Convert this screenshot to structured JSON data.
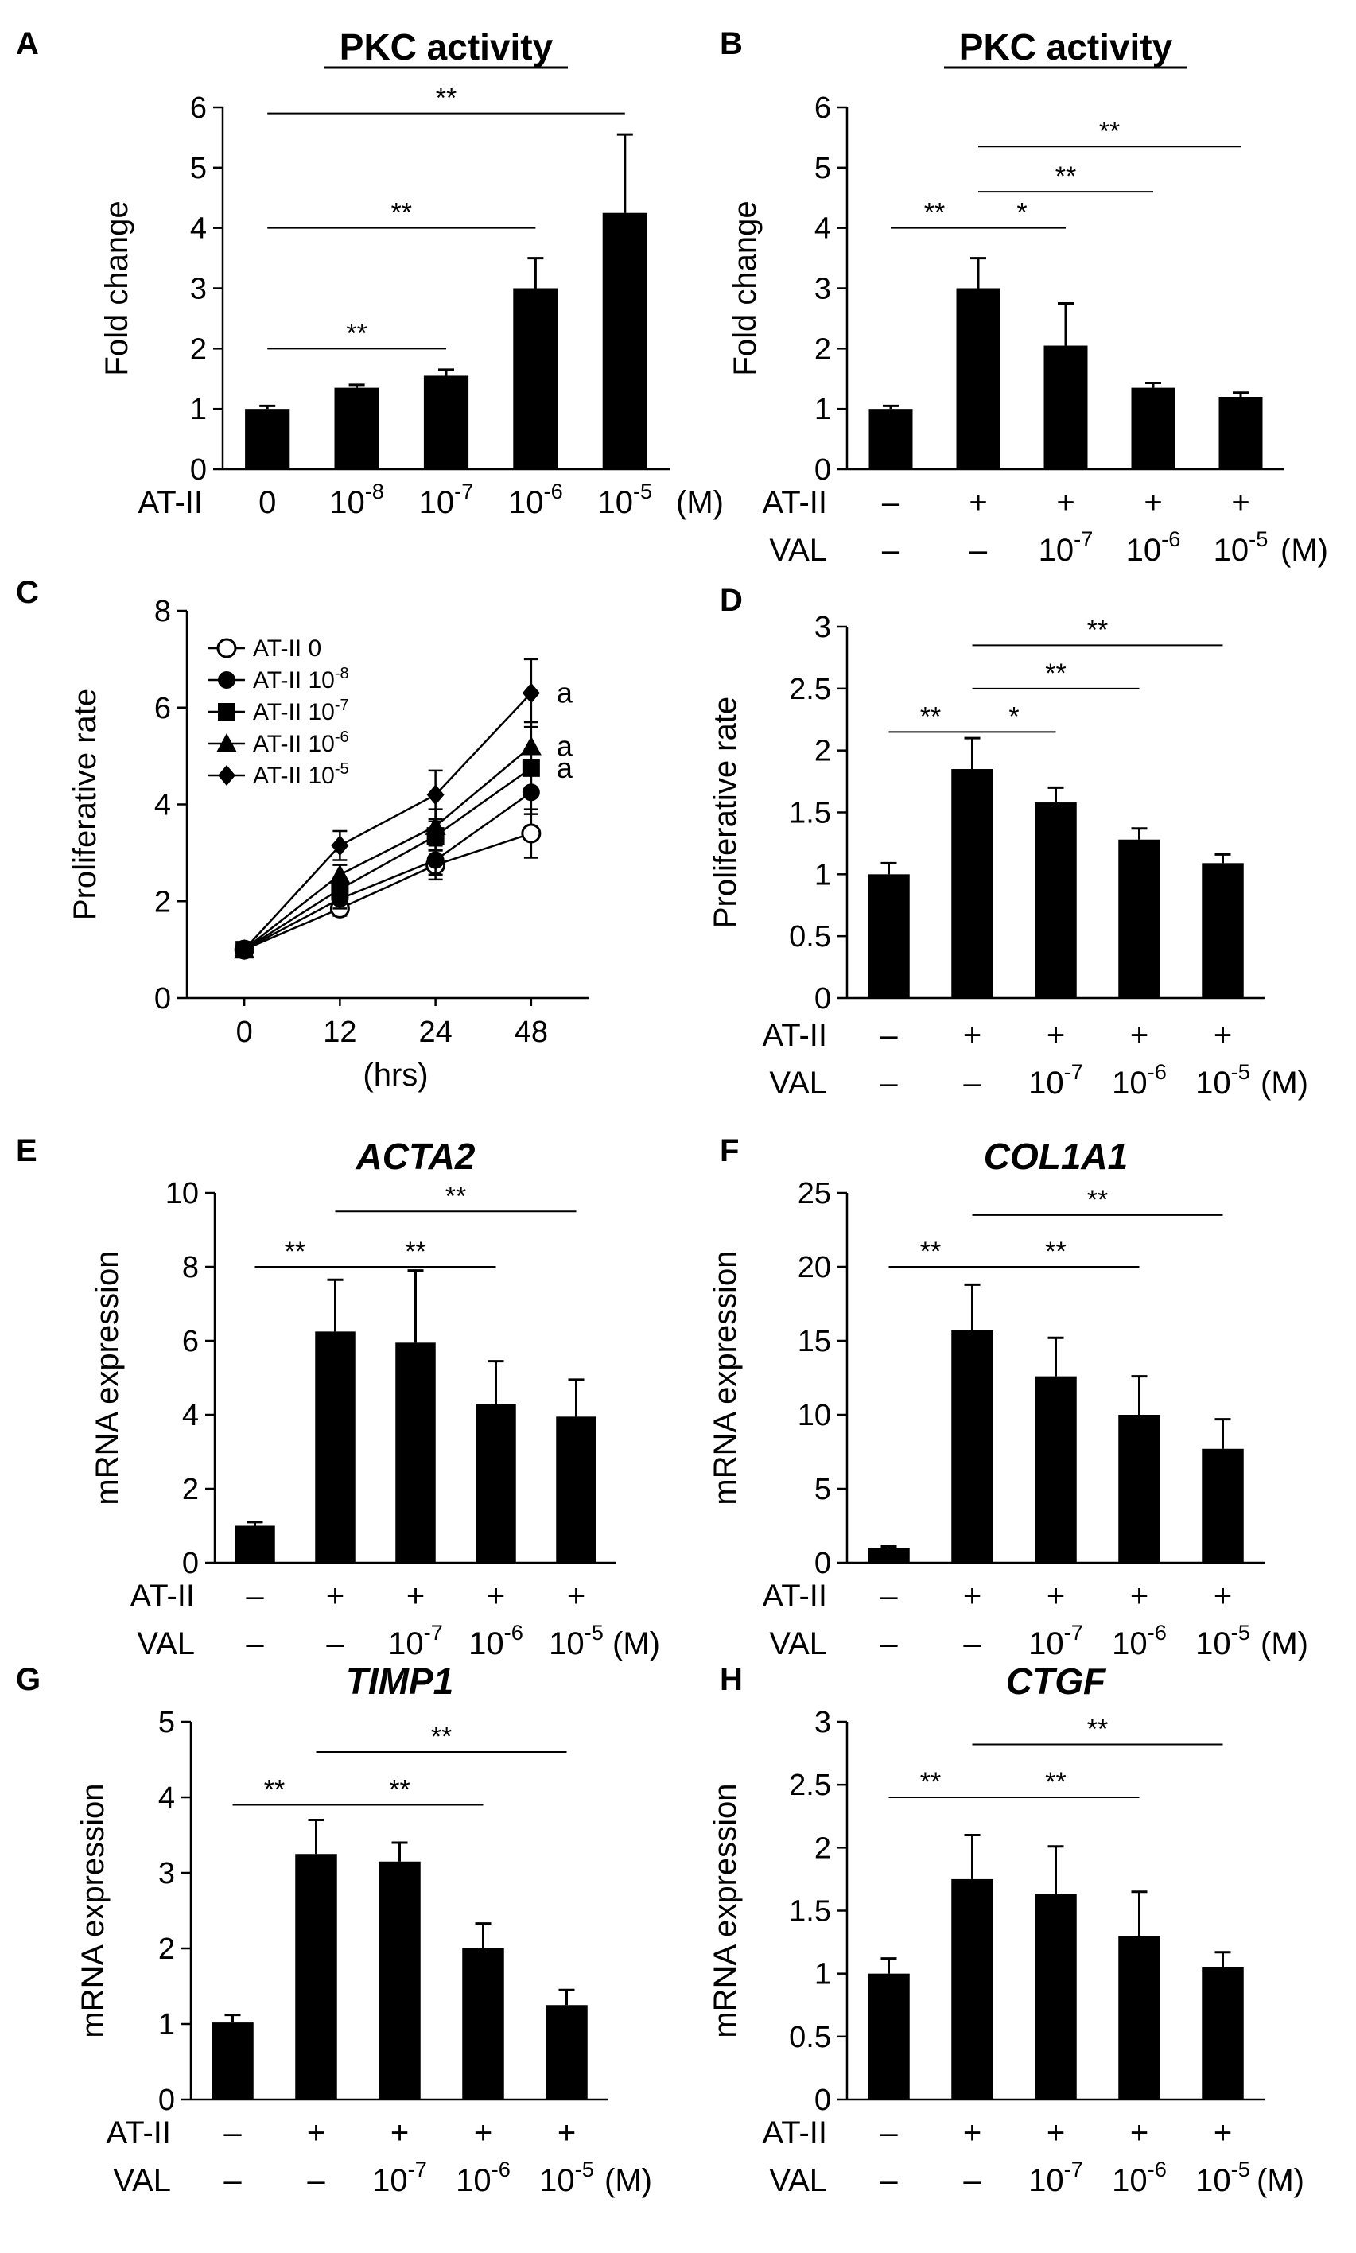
{
  "figure": {
    "units_suffix": "(M)",
    "chart_count": 8
  },
  "chart_data": [
    {
      "id": "A",
      "panel_label": "A",
      "type": "bar",
      "title": "PKC activity",
      "title_style": "underline",
      "ylabel": "Fold change",
      "ylim": [
        0,
        6
      ],
      "yticks": [
        "0",
        "1",
        "2",
        "3",
        "4",
        "5",
        "6"
      ],
      "row_labels": [
        "AT-II"
      ],
      "categories": [
        {
          "cells": [
            {
              "text": "0"
            }
          ]
        },
        {
          "cells": [
            {
              "base": "10",
              "exp": "-8"
            }
          ]
        },
        {
          "cells": [
            {
              "base": "10",
              "exp": "-7"
            }
          ]
        },
        {
          "cells": [
            {
              "base": "10",
              "exp": "-6"
            }
          ]
        },
        {
          "cells": [
            {
              "base": "10",
              "exp": "-5"
            }
          ]
        }
      ],
      "unit": "(M)",
      "values": [
        1.0,
        1.35,
        1.55,
        3.0,
        4.25
      ],
      "errors": [
        0.05,
        0.05,
        0.1,
        0.5,
        1.3
      ],
      "significance": [
        {
          "from": 0,
          "to": 2,
          "label": "**",
          "y": 2.0
        },
        {
          "from": 0,
          "to": 3,
          "label": "**",
          "y": 4.0
        },
        {
          "from": 0,
          "to": 4,
          "label": "**",
          "y": 5.9
        }
      ]
    },
    {
      "id": "B",
      "panel_label": "B",
      "type": "bar",
      "title": "PKC activity",
      "title_style": "underline",
      "ylabel": "Fold change",
      "ylim": [
        0,
        6
      ],
      "yticks": [
        "0",
        "1",
        "2",
        "3",
        "4",
        "5",
        "6"
      ],
      "row_labels": [
        "AT-II",
        "VAL"
      ],
      "categories": [
        {
          "cells": [
            {
              "text": "–"
            },
            {
              "text": "–"
            }
          ]
        },
        {
          "cells": [
            {
              "text": "+"
            },
            {
              "text": "–"
            }
          ]
        },
        {
          "cells": [
            {
              "text": "+"
            },
            {
              "base": "10",
              "exp": "-7"
            }
          ]
        },
        {
          "cells": [
            {
              "text": "+"
            },
            {
              "base": "10",
              "exp": "-6"
            }
          ]
        },
        {
          "cells": [
            {
              "text": "+"
            },
            {
              "base": "10",
              "exp": "-5"
            }
          ]
        }
      ],
      "unit": "(M)",
      "values": [
        1.0,
        3.0,
        2.05,
        1.35,
        1.2
      ],
      "errors": [
        0.05,
        0.5,
        0.7,
        0.08,
        0.07
      ],
      "significance": [
        {
          "from": 0,
          "to": 1,
          "label": "**",
          "y": 4.0
        },
        {
          "from": 1,
          "to": 2,
          "label": "*",
          "y": 4.0
        },
        {
          "from": 1,
          "to": 3,
          "label": "**",
          "y": 4.6
        },
        {
          "from": 1,
          "to": 4,
          "label": "**",
          "y": 5.35
        }
      ]
    },
    {
      "id": "C",
      "panel_label": "C",
      "type": "line",
      "title": "",
      "ylabel": "Proliferative rate",
      "xlabel": "(hrs)",
      "ylim": [
        0,
        8
      ],
      "yticks": [
        "0",
        "2",
        "4",
        "6",
        "8"
      ],
      "x": [
        "0",
        "12",
        "24",
        "48"
      ],
      "series": [
        {
          "name": "AT-II 0",
          "base": "AT-II",
          "exp": "0",
          "marker": "circle-open",
          "values": [
            1.0,
            1.85,
            2.75,
            3.4
          ],
          "errors": [
            0.05,
            0.15,
            0.3,
            0.5
          ]
        },
        {
          "name": "AT-II 10-8",
          "base": "AT-II 10",
          "exp": "-8",
          "marker": "circle",
          "values": [
            1.0,
            2.05,
            2.85,
            4.25
          ],
          "errors": [
            0.05,
            0.2,
            0.3,
            0.45
          ]
        },
        {
          "name": "AT-II 10-7",
          "base": "AT-II 10",
          "exp": "-7",
          "marker": "square",
          "values": [
            1.0,
            2.25,
            3.35,
            4.75
          ],
          "errors": [
            0.05,
            0.2,
            0.3,
            0.4
          ]
        },
        {
          "name": "AT-II 10-6",
          "base": "AT-II 10",
          "exp": "-6",
          "marker": "triangle",
          "values": [
            1.0,
            2.55,
            3.55,
            5.2
          ],
          "errors": [
            0.05,
            0.2,
            0.35,
            0.5
          ]
        },
        {
          "name": "AT-II 10-5",
          "base": "AT-II 10",
          "exp": "-5",
          "marker": "diamond",
          "values": [
            1.0,
            3.15,
            4.2,
            6.3
          ],
          "errors": [
            0.05,
            0.3,
            0.5,
            0.7
          ]
        }
      ],
      "point_annotations": [
        {
          "series": 4,
          "label": "a"
        },
        {
          "series": 3,
          "label": "a"
        },
        {
          "series": 2,
          "label": "a"
        }
      ]
    },
    {
      "id": "D",
      "panel_label": "D",
      "type": "bar",
      "title": "",
      "ylabel": "Proliferative rate",
      "ylim": [
        0,
        3
      ],
      "yticks": [
        "0",
        "0.5",
        "1",
        "1.5",
        "2",
        "2.5",
        "3"
      ],
      "row_labels": [
        "AT-II",
        "VAL"
      ],
      "categories": [
        {
          "cells": [
            {
              "text": "–"
            },
            {
              "text": "–"
            }
          ]
        },
        {
          "cells": [
            {
              "text": "+"
            },
            {
              "text": "–"
            }
          ]
        },
        {
          "cells": [
            {
              "text": "+"
            },
            {
              "base": "10",
              "exp": "-7"
            }
          ]
        },
        {
          "cells": [
            {
              "text": "+"
            },
            {
              "base": "10",
              "exp": "-6"
            }
          ]
        },
        {
          "cells": [
            {
              "text": "+"
            },
            {
              "base": "10",
              "exp": "-5"
            }
          ]
        }
      ],
      "unit": "(M)",
      "values": [
        1.0,
        1.85,
        1.58,
        1.28,
        1.09
      ],
      "errors": [
        0.09,
        0.25,
        0.12,
        0.09,
        0.07
      ],
      "significance": [
        {
          "from": 0,
          "to": 1,
          "label": "**",
          "y": 2.15
        },
        {
          "from": 1,
          "to": 2,
          "label": "*",
          "y": 2.15
        },
        {
          "from": 1,
          "to": 3,
          "label": "**",
          "y": 2.5
        },
        {
          "from": 1,
          "to": 4,
          "label": "**",
          "y": 2.85
        }
      ]
    },
    {
      "id": "E",
      "panel_label": "E",
      "type": "bar",
      "title": "ACTA2",
      "title_style": "italic",
      "ylabel": "mRNA expression",
      "ylim": [
        0,
        10
      ],
      "yticks": [
        "0",
        "2",
        "4",
        "6",
        "8",
        "10"
      ],
      "row_labels": [
        "AT-II",
        "VAL"
      ],
      "categories": [
        {
          "cells": [
            {
              "text": "–"
            },
            {
              "text": "–"
            }
          ]
        },
        {
          "cells": [
            {
              "text": "+"
            },
            {
              "text": "–"
            }
          ]
        },
        {
          "cells": [
            {
              "text": "+"
            },
            {
              "base": "10",
              "exp": "-7"
            }
          ]
        },
        {
          "cells": [
            {
              "text": "+"
            },
            {
              "base": "10",
              "exp": "-6"
            }
          ]
        },
        {
          "cells": [
            {
              "text": "+"
            },
            {
              "base": "10",
              "exp": "-5"
            }
          ]
        }
      ],
      "unit": "(M)",
      "values": [
        1.0,
        6.25,
        5.95,
        4.3,
        3.95
      ],
      "errors": [
        0.1,
        1.4,
        1.95,
        1.15,
        1.0
      ],
      "significance": [
        {
          "from": 0,
          "to": 1,
          "label": "**",
          "y": 8.0
        },
        {
          "from": 1,
          "to": 3,
          "label": "**",
          "y": 8.0
        },
        {
          "from": 1,
          "to": 4,
          "label": "**",
          "y": 9.5
        }
      ]
    },
    {
      "id": "F",
      "panel_label": "F",
      "type": "bar",
      "title": "COL1A1",
      "title_style": "italic",
      "ylabel": "mRNA expression",
      "ylim": [
        0,
        25
      ],
      "yticks": [
        "0",
        "5",
        "10",
        "15",
        "20",
        "25"
      ],
      "row_labels": [
        "AT-II",
        "VAL"
      ],
      "categories": [
        {
          "cells": [
            {
              "text": "–"
            },
            {
              "text": "–"
            }
          ]
        },
        {
          "cells": [
            {
              "text": "+"
            },
            {
              "text": "–"
            }
          ]
        },
        {
          "cells": [
            {
              "text": "+"
            },
            {
              "base": "10",
              "exp": "-7"
            }
          ]
        },
        {
          "cells": [
            {
              "text": "+"
            },
            {
              "base": "10",
              "exp": "-6"
            }
          ]
        },
        {
          "cells": [
            {
              "text": "+"
            },
            {
              "base": "10",
              "exp": "-5"
            }
          ]
        }
      ],
      "unit": "(M)",
      "values": [
        1.0,
        15.7,
        12.6,
        10.0,
        7.7
      ],
      "errors": [
        0.1,
        3.1,
        2.6,
        2.6,
        2.0
      ],
      "significance": [
        {
          "from": 0,
          "to": 1,
          "label": "**",
          "y": 20.0
        },
        {
          "from": 1,
          "to": 3,
          "label": "**",
          "y": 20.0
        },
        {
          "from": 1,
          "to": 4,
          "label": "**",
          "y": 23.5
        }
      ]
    },
    {
      "id": "G",
      "panel_label": "G",
      "type": "bar",
      "title": "TIMP1",
      "title_style": "italic",
      "ylabel": "mRNA expression",
      "ylim": [
        0,
        5
      ],
      "yticks": [
        "0",
        "1",
        "2",
        "3",
        "4",
        "5"
      ],
      "row_labels": [
        "AT-II",
        "VAL"
      ],
      "categories": [
        {
          "cells": [
            {
              "text": "–"
            },
            {
              "text": "–"
            }
          ]
        },
        {
          "cells": [
            {
              "text": "+"
            },
            {
              "text": "–"
            }
          ]
        },
        {
          "cells": [
            {
              "text": "+"
            },
            {
              "base": "10",
              "exp": "-7"
            }
          ]
        },
        {
          "cells": [
            {
              "text": "+"
            },
            {
              "base": "10",
              "exp": "-6"
            }
          ]
        },
        {
          "cells": [
            {
              "text": "+"
            },
            {
              "base": "10",
              "exp": "-5"
            }
          ]
        }
      ],
      "unit": "(M)",
      "values": [
        1.02,
        3.25,
        3.15,
        2.0,
        1.25
      ],
      "errors": [
        0.1,
        0.45,
        0.25,
        0.33,
        0.2
      ],
      "significance": [
        {
          "from": 0,
          "to": 1,
          "label": "**",
          "y": 3.9
        },
        {
          "from": 1,
          "to": 3,
          "label": "**",
          "y": 3.9
        },
        {
          "from": 1,
          "to": 4,
          "label": "**",
          "y": 4.6
        }
      ]
    },
    {
      "id": "H",
      "panel_label": "H",
      "type": "bar",
      "title": "CTGF",
      "title_style": "italic",
      "ylabel": "mRNA expression",
      "ylim": [
        0,
        3
      ],
      "yticks": [
        "0",
        "0.5",
        "1",
        "1.5",
        "2",
        "2.5",
        "3"
      ],
      "row_labels": [
        "AT-II",
        "VAL"
      ],
      "categories": [
        {
          "cells": [
            {
              "text": "–"
            },
            {
              "text": "–"
            }
          ]
        },
        {
          "cells": [
            {
              "text": "+"
            },
            {
              "text": "–"
            }
          ]
        },
        {
          "cells": [
            {
              "text": "+"
            },
            {
              "base": "10",
              "exp": "-7"
            }
          ]
        },
        {
          "cells": [
            {
              "text": "+"
            },
            {
              "base": "10",
              "exp": "-6"
            }
          ]
        },
        {
          "cells": [
            {
              "text": "+"
            },
            {
              "base": "10",
              "exp": "-5"
            }
          ]
        }
      ],
      "unit": "(M)",
      "values": [
        1.0,
        1.75,
        1.63,
        1.3,
        1.05
      ],
      "errors": [
        0.12,
        0.35,
        0.38,
        0.35,
        0.12
      ],
      "significance": [
        {
          "from": 0,
          "to": 1,
          "label": "**",
          "y": 2.4
        },
        {
          "from": 1,
          "to": 3,
          "label": "**",
          "y": 2.4
        },
        {
          "from": 1,
          "to": 4,
          "label": "**",
          "y": 2.82
        }
      ]
    }
  ]
}
